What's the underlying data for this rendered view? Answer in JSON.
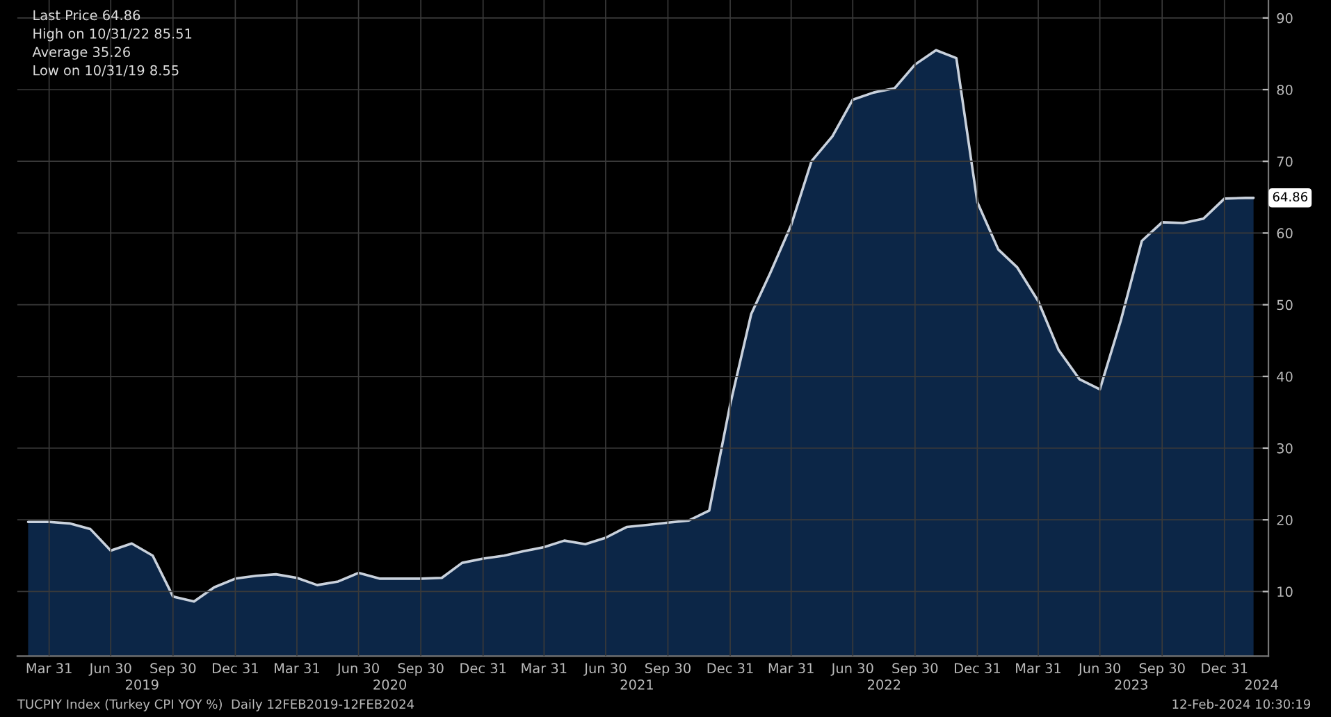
{
  "chart_data": {
    "type": "area",
    "x": [
      "2019-02-28",
      "2019-03-31",
      "2019-04-30",
      "2019-05-31",
      "2019-06-30",
      "2019-07-31",
      "2019-08-31",
      "2019-09-30",
      "2019-10-31",
      "2019-11-30",
      "2019-12-31",
      "2020-01-31",
      "2020-02-29",
      "2020-03-31",
      "2020-04-30",
      "2020-05-31",
      "2020-06-30",
      "2020-07-31",
      "2020-08-31",
      "2020-09-30",
      "2020-10-31",
      "2020-11-30",
      "2020-12-31",
      "2021-01-31",
      "2021-02-28",
      "2021-03-31",
      "2021-04-30",
      "2021-05-31",
      "2021-06-30",
      "2021-07-31",
      "2021-08-31",
      "2021-09-30",
      "2021-10-31",
      "2021-11-30",
      "2021-12-31",
      "2022-01-31",
      "2022-02-28",
      "2022-03-31",
      "2022-04-30",
      "2022-05-31",
      "2022-06-30",
      "2022-07-31",
      "2022-08-31",
      "2022-09-30",
      "2022-10-31",
      "2022-11-30",
      "2022-12-31",
      "2023-01-31",
      "2023-02-28",
      "2023-03-31",
      "2023-04-30",
      "2023-05-31",
      "2023-06-30",
      "2023-07-31",
      "2023-08-31",
      "2023-09-30",
      "2023-10-31",
      "2023-11-30",
      "2023-12-31",
      "2024-01-31",
      "2024-02-12"
    ],
    "series": [
      {
        "color": "#c9d1dc",
        "values": [
          19.7,
          19.7,
          19.5,
          18.7,
          15.7,
          16.7,
          15.0,
          9.3,
          8.6,
          10.6,
          11.8,
          12.2,
          12.4,
          11.9,
          10.9,
          11.4,
          12.6,
          11.8,
          11.8,
          11.8,
          11.9,
          14.0,
          14.6,
          15.0,
          15.6,
          16.2,
          17.1,
          16.6,
          17.5,
          19.0,
          19.3,
          19.6,
          19.9,
          21.3,
          36.1,
          48.7,
          54.4,
          61.1,
          70.0,
          73.5,
          78.6,
          79.6,
          80.2,
          83.5,
          85.5,
          84.4,
          64.3,
          57.7,
          55.2,
          50.5,
          43.7,
          39.6,
          38.2,
          47.8,
          58.9,
          61.5,
          61.4,
          62.0,
          64.8,
          64.9,
          64.9
        ]
      }
    ],
    "xlim": [
      "2019-02-12",
      "2024-03-05"
    ],
    "xticks": [
      {
        "value": "2019-03-31",
        "label": "Mar 31"
      },
      {
        "value": "2019-06-30",
        "label": "Jun 30"
      },
      {
        "value": "2019-09-30",
        "label": "Sep 30"
      },
      {
        "value": "2019-12-31",
        "label": "Dec 31"
      },
      {
        "value": "2020-03-31",
        "label": "Mar 31"
      },
      {
        "value": "2020-06-30",
        "label": "Jun 30"
      },
      {
        "value": "2020-09-30",
        "label": "Sep 30"
      },
      {
        "value": "2020-12-31",
        "label": "Dec 31"
      },
      {
        "value": "2021-03-31",
        "label": "Mar 31"
      },
      {
        "value": "2021-06-30",
        "label": "Jun 30"
      },
      {
        "value": "2021-09-30",
        "label": "Sep 30"
      },
      {
        "value": "2021-12-31",
        "label": "Dec 31"
      },
      {
        "value": "2022-03-31",
        "label": "Mar 31"
      },
      {
        "value": "2022-06-30",
        "label": "Jun 30"
      },
      {
        "value": "2022-09-30",
        "label": "Sep 30"
      },
      {
        "value": "2022-12-31",
        "label": "Dec 31"
      },
      {
        "value": "2023-03-31",
        "label": "Mar 31"
      },
      {
        "value": "2023-06-30",
        "label": "Jun 30"
      },
      {
        "value": "2023-09-30",
        "label": "Sep 30"
      },
      {
        "value": "2023-12-31",
        "label": "Dec 31"
      }
    ],
    "ylim": [
      1,
      92.5
    ],
    "yticks": [
      10,
      20,
      30,
      40,
      50,
      60,
      70,
      80,
      90
    ],
    "grid": true,
    "annotations": [
      "Last Price 64.86",
      "High on 10/31/22 85.51",
      "Average 35.26",
      "Low on 10/31/19 8.55",
      "TUCPIY Index (Turkey CPI YOY %)  Daily 12FEB2019-12FEB2024",
      "12-Feb-2024 10:30:19",
      {
        "text": "64.86",
        "x": "2024-01-31",
        "y": 64.9
      },
      "2019",
      "2020",
      "2021",
      "2022",
      "2023",
      "2024"
    ]
  }
}
